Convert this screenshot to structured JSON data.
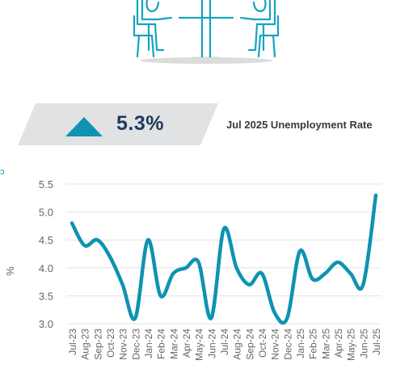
{
  "banner": {
    "value": "5.3%",
    "label": "Jul 2025 Unemployment Rate",
    "accent_color": "#0e93b1"
  },
  "side_glyph": "ɔ",
  "illustration": {
    "icon": "two-people-meeting-icon",
    "color": "#17a3c2"
  },
  "chart_data": {
    "type": "line",
    "title": "",
    "xlabel": "",
    "ylabel": "%",
    "ylim": [
      3.0,
      5.5
    ],
    "yticks": [
      "5.5",
      "5.0",
      "4.5",
      "4.0",
      "3.5",
      "3.0"
    ],
    "grid": "horizontal",
    "line_color": "#0e93b1",
    "categories": [
      "Jul-23",
      "Aug-23",
      "Sep-23",
      "Oct-23",
      "Nov-23",
      "Dec-23",
      "Jan-24",
      "Feb-24",
      "Mar-24",
      "Apr-24",
      "May-24",
      "Jun-24",
      "Jul-24",
      "Aug-24",
      "Sep-24",
      "Oct-24",
      "Nov-24",
      "Dec-24",
      "Jan-25",
      "Feb-25",
      "Mar-25",
      "Apr-25",
      "May-25",
      "Jun-25",
      "Jul-25"
    ],
    "values": [
      4.8,
      4.4,
      4.5,
      4.2,
      3.7,
      3.1,
      4.5,
      3.5,
      3.9,
      4.0,
      4.1,
      3.1,
      4.7,
      4.0,
      3.7,
      3.9,
      3.2,
      3.1,
      4.3,
      3.8,
      3.9,
      4.1,
      3.9,
      3.7,
      5.3
    ]
  }
}
